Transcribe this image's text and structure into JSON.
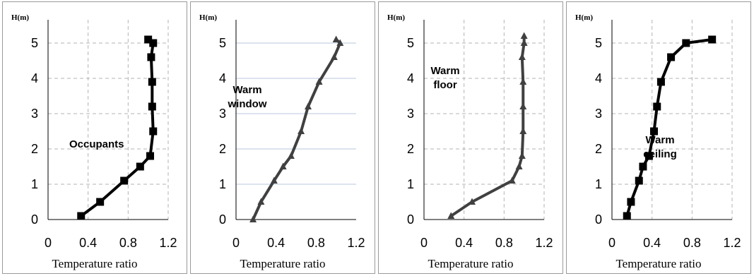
{
  "figure": {
    "panels": [
      {
        "annotation": [
          "Occupants"
        ],
        "style": "square",
        "line_color": "#000000"
      },
      {
        "annotation": [
          "Warm",
          "window"
        ],
        "style": "triangle",
        "line_color": "#404040"
      },
      {
        "annotation": [
          "Warm",
          "floor"
        ],
        "style": "triangle",
        "line_color": "#404040"
      },
      {
        "annotation": [
          "Warm",
          "ceiling"
        ],
        "style": "square",
        "line_color": "#000000"
      }
    ]
  },
  "chart_data": [
    {
      "type": "line",
      "ylabel": "H(m)",
      "xlabel": "Temperature ratio",
      "xlim": [
        0,
        1.2
      ],
      "ylim": [
        0,
        5.5
      ],
      "xticks": [
        "0",
        "0.4",
        "0.8",
        "1.2"
      ],
      "yticks": [
        "0",
        "1",
        "2",
        "3",
        "4",
        "5"
      ],
      "grid": "dashed",
      "annotation": "Occupants",
      "series": [
        {
          "x": [
            0.33,
            0.52,
            0.76,
            0.92,
            1.02,
            1.05,
            1.04,
            1.04,
            1.03,
            1.05,
            1.0
          ],
          "y": [
            0.1,
            0.5,
            1.1,
            1.5,
            1.8,
            2.5,
            3.2,
            3.9,
            4.6,
            5.0,
            5.1
          ]
        }
      ]
    },
    {
      "type": "line",
      "ylabel": "H(m)",
      "xlabel": "Temperature ratio",
      "xlim": [
        0,
        1.2
      ],
      "ylim": [
        0,
        5.5
      ],
      "xticks": [
        "0",
        "0.4",
        "0.8",
        "1.2"
      ],
      "yticks": [
        "0",
        "1",
        "2",
        "3",
        "4",
        "5"
      ],
      "grid": "solid-horizontal",
      "annotation": "Warm window",
      "series": [
        {
          "x": [
            0.17,
            0.25,
            0.38,
            0.47,
            0.55,
            0.65,
            0.72,
            0.83,
            0.98,
            1.04,
            1.0
          ],
          "y": [
            0.0,
            0.5,
            1.1,
            1.5,
            1.8,
            2.5,
            3.2,
            3.9,
            4.6,
            5.0,
            5.1
          ]
        }
      ]
    },
    {
      "type": "line",
      "ylabel": "H(m)",
      "xlabel": "Temperature ratio",
      "xlim": [
        0,
        1.2
      ],
      "ylim": [
        0,
        5.5
      ],
      "xticks": [
        "0",
        "0.4",
        "0.8",
        "1.2"
      ],
      "yticks": [
        "0",
        "1",
        "2",
        "3",
        "4",
        "5"
      ],
      "grid": "dashed",
      "annotation": "Warm floor",
      "series": [
        {
          "x": [
            0.27,
            0.48,
            0.88,
            0.95,
            0.98,
            0.99,
            0.99,
            0.99,
            0.98,
            1.0,
            1.0
          ],
          "y": [
            0.1,
            0.5,
            1.1,
            1.5,
            1.8,
            2.5,
            3.2,
            3.9,
            4.6,
            5.0,
            5.2
          ]
        }
      ]
    },
    {
      "type": "line",
      "ylabel": "H(m)",
      "xlabel": "Temperature ratio",
      "xlim": [
        0,
        1.2
      ],
      "ylim": [
        0,
        5.5
      ],
      "xticks": [
        "0",
        "0.4",
        "0.8",
        "1.2"
      ],
      "yticks": [
        "0",
        "1",
        "2",
        "3",
        "4",
        "5"
      ],
      "grid": "dashed",
      "annotation": "Warm ceiling",
      "series": [
        {
          "x": [
            0.15,
            0.19,
            0.27,
            0.31,
            0.37,
            0.42,
            0.45,
            0.49,
            0.59,
            0.74,
            1.0
          ],
          "y": [
            0.1,
            0.5,
            1.1,
            1.5,
            1.8,
            2.5,
            3.2,
            3.9,
            4.6,
            5.0,
            5.1
          ]
        }
      ]
    }
  ]
}
